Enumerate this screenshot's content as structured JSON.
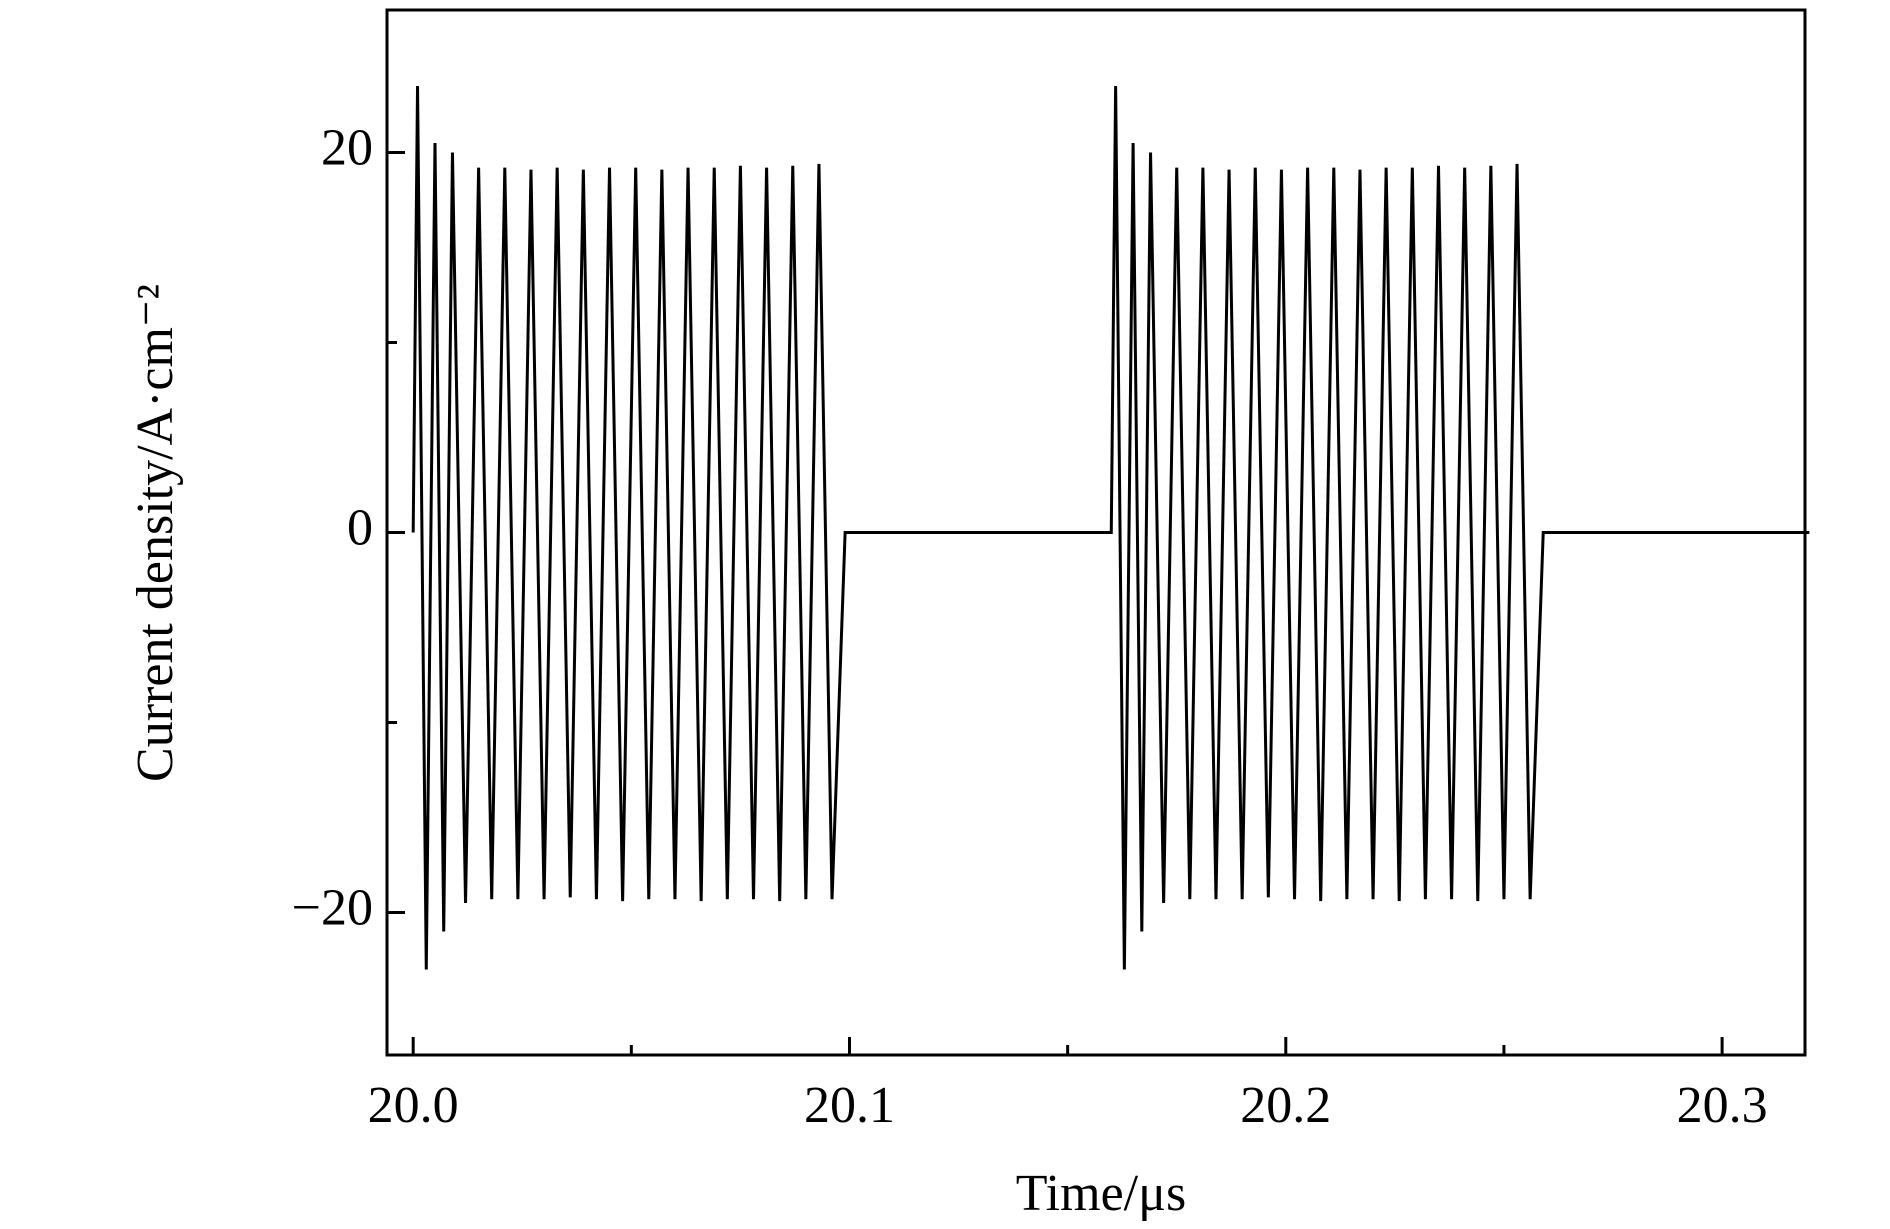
{
  "chart_data": {
    "type": "line",
    "xlabel": "Time/μs",
    "ylabel": "Current density/A·cm⁻²",
    "series": [
      {
        "color": "#000000",
        "x": [
          20.0,
          20.001,
          20.003,
          20.005,
          20.007,
          20.009,
          20.012,
          20.015,
          20.018,
          20.021,
          20.024,
          20.027,
          20.03,
          20.033,
          20.036,
          20.039,
          20.042,
          20.045,
          20.048,
          20.051,
          20.054,
          20.057,
          20.06,
          20.063,
          20.066,
          20.069,
          20.072,
          20.075,
          20.078,
          20.081,
          20.084,
          20.087,
          20.09,
          20.093,
          20.096,
          20.099,
          20.16,
          20.161,
          20.163,
          20.165,
          20.167,
          20.169,
          20.172,
          20.175,
          20.178,
          20.181,
          20.184,
          20.187,
          20.19,
          20.193,
          20.196,
          20.199,
          20.202,
          20.205,
          20.208,
          20.211,
          20.214,
          20.217,
          20.22,
          20.223,
          20.226,
          20.229,
          20.232,
          20.235,
          20.238,
          20.241,
          20.244,
          20.247,
          20.25,
          20.253,
          20.256,
          20.259,
          20.32
        ],
        "values": [
          0,
          23.5,
          -23,
          20.5,
          -21,
          20,
          -19.5,
          19.2,
          -19.3,
          19.2,
          -19.3,
          19.1,
          -19.3,
          19.2,
          -19.2,
          19.1,
          -19.3,
          19.2,
          -19.4,
          19.2,
          -19.3,
          19.1,
          -19.3,
          19.2,
          -19.4,
          19.2,
          -19.3,
          19.3,
          -19.3,
          19.2,
          -19.4,
          19.3,
          -19.3,
          19.4,
          -19.3,
          0,
          0,
          23.5,
          -23,
          20.5,
          -21,
          20,
          -19.5,
          19.2,
          -19.3,
          19.2,
          -19.3,
          19.1,
          -19.3,
          19.2,
          -19.2,
          19.1,
          -19.3,
          19.2,
          -19.4,
          19.2,
          -19.3,
          19.1,
          -19.3,
          19.2,
          -19.4,
          19.2,
          -19.3,
          19.3,
          -19.3,
          19.2,
          -19.4,
          19.3,
          -19.3,
          19.4,
          -19.3,
          0,
          0
        ]
      }
    ],
    "xlim": [
      19.994,
      20.319
    ],
    "xticks": [
      {
        "value": 20,
        "label": "20.0"
      },
      20.1,
      20.2,
      20.3
    ],
    "xminor_ticks": [
      20.05,
      20.15,
      20.25
    ],
    "ylim": [
      -27.5,
      27.5
    ],
    "yticks": [
      {
        "value": -20,
        "label": "−20"
      },
      0,
      20
    ],
    "yminor_ticks": [
      -10,
      10
    ],
    "grid": false
  }
}
